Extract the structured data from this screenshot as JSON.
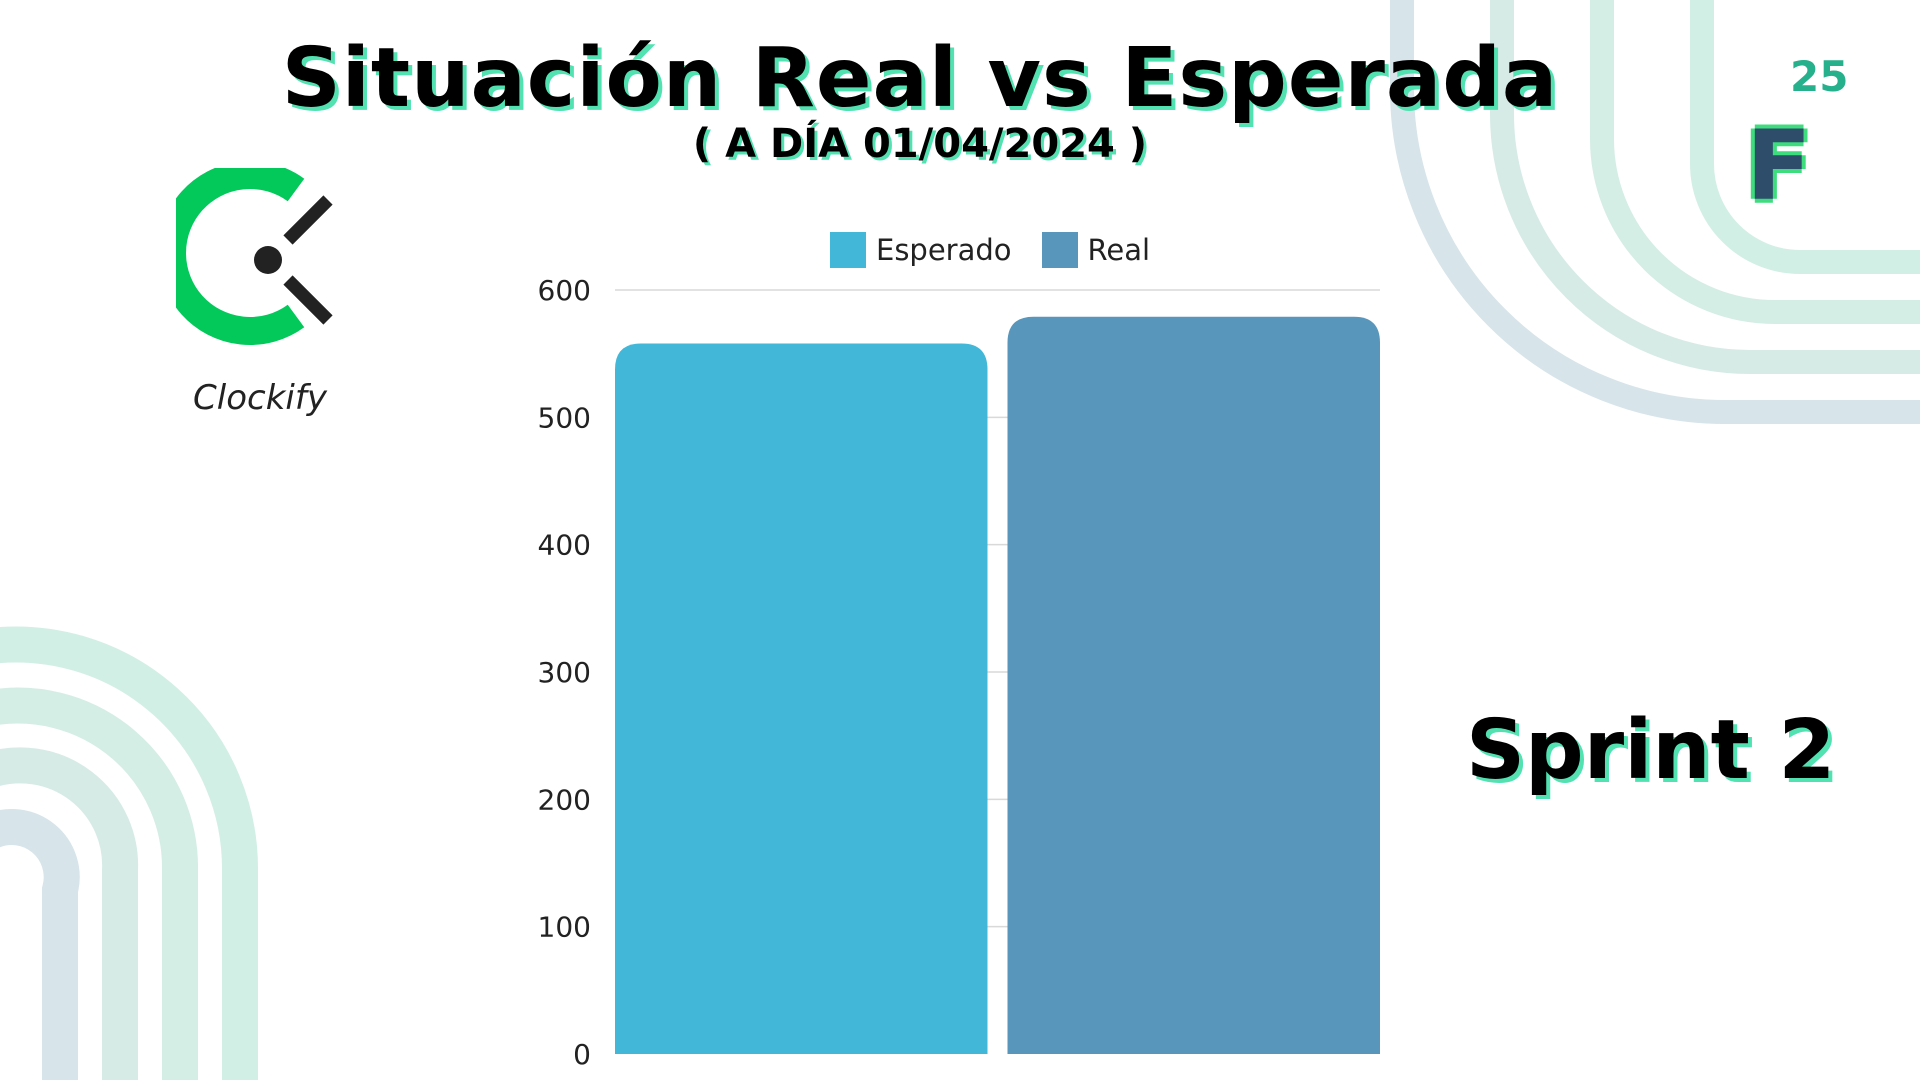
{
  "header": {
    "title": "Situación Real vs Esperada",
    "subtitle": "( A DÍA 01/04/2024 )"
  },
  "brand": {
    "number": "25",
    "letter": "F",
    "accent": "#52e2b1"
  },
  "logo": {
    "name": "Clockify",
    "icon": "clockify-icon",
    "color": "#03c95a"
  },
  "sprint_label": "Sprint 2",
  "chart_data": {
    "type": "bar",
    "categories": [
      "Esperado",
      "Real"
    ],
    "values": [
      558,
      579
    ],
    "colors": [
      "#42b7d7",
      "#5896bc"
    ],
    "ylim": [
      0,
      600
    ],
    "yticks": [
      0,
      100,
      200,
      300,
      400,
      500,
      600
    ],
    "grid": true,
    "legend": {
      "placement": "top",
      "entries": [
        "Esperado",
        "Real"
      ]
    }
  }
}
